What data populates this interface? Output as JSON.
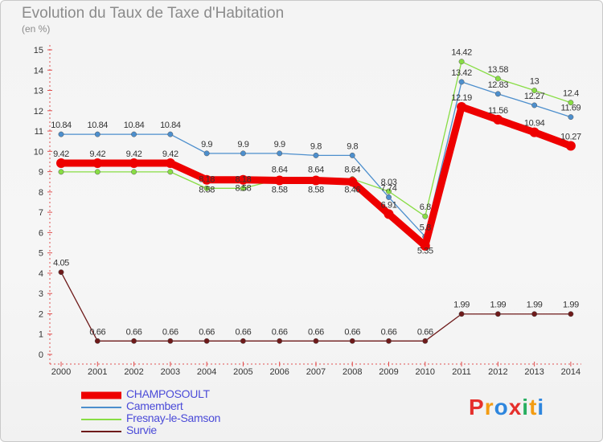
{
  "page": {
    "title": "Evolution du Taux de Taxe d'Habitation",
    "subtitle": "(en %)"
  },
  "chart_data": {
    "type": "line",
    "title": "Evolution du Taux de Taxe d'Habitation",
    "ylabel": "(en %)",
    "x": [
      "2000",
      "2001",
      "2002",
      "2003",
      "2004",
      "2005",
      "2006",
      "2007",
      "2008",
      "2009",
      "2010",
      "2011",
      "2012",
      "2013",
      "2014"
    ],
    "ylim": [
      0,
      15
    ],
    "yticks": [
      "0",
      "1",
      "2",
      "3",
      "4",
      "5",
      "6",
      "7",
      "8",
      "9",
      "10",
      "11",
      "12",
      "13",
      "14",
      "15"
    ],
    "grid": false,
    "legend_position": "bottom-left",
    "series": [
      {
        "name": "CHAMPOSOULT",
        "color": "#ee0000",
        "values": [
          9.42,
          9.42,
          9.42,
          9.42,
          8.6,
          8.6,
          8.57,
          8.57,
          8.5,
          6.91,
          5.35,
          12.19,
          11.56,
          10.94,
          10.27
        ],
        "labels": [
          "9.42",
          "9.42",
          "9.42",
          "9.42",
          "",
          "",
          "",
          "",
          "",
          "6.91",
          "",
          "12.19",
          "11.56",
          "10.94",
          "10.27"
        ]
      },
      {
        "name": "Camembert",
        "color": "#4d8fcd",
        "values": [
          10.84,
          10.84,
          10.84,
          10.84,
          9.9,
          9.9,
          9.9,
          9.8,
          9.8,
          7.74,
          5.8,
          13.42,
          12.83,
          12.27,
          11.69
        ],
        "labels": [
          "10.84",
          "10.84",
          "10.84",
          "10.84",
          "9.9",
          "9.9",
          "9.9",
          "9.8",
          "9.8",
          "7.74",
          "5.8",
          "13.42",
          "12.83",
          "12.27",
          "11.69"
        ]
      },
      {
        "name": "Fresnay-le-Samson",
        "color": "#88dd44",
        "values": [
          8.99,
          8.99,
          8.99,
          8.99,
          8.18,
          8.18,
          8.64,
          8.64,
          8.64,
          8.03,
          6.8,
          14.42,
          13.58,
          13.0,
          12.4
        ],
        "labels": [
          "",
          "",
          "",
          "",
          "8.18",
          "8.18",
          "8.64",
          "8.64",
          "8.64",
          "8.03",
          "6.8",
          "14.42",
          "13.58",
          "13",
          "12.4"
        ]
      },
      {
        "name": "Survie",
        "color": "#6e1a1a",
        "values": [
          4.05,
          0.66,
          0.66,
          0.66,
          0.66,
          0.66,
          0.66,
          0.66,
          0.66,
          0.66,
          0.66,
          1.99,
          1.99,
          1.99,
          1.99
        ],
        "labels": [
          "4.05",
          "0.66",
          "0.66",
          "0.66",
          "0.66",
          "0.66",
          "0.66",
          "0.66",
          "0.66",
          "0.66",
          "0.66",
          "1.99",
          "1.99",
          "1.99",
          "1.99"
        ]
      }
    ],
    "extra_labels": [
      "8.58",
      "8.58",
      "8.58",
      "8.58",
      "8.46",
      "5.35"
    ]
  },
  "logo": {
    "text": "Proxiti",
    "letters": [
      "P",
      "r",
      "o",
      "x",
      "i",
      "t",
      "i"
    ],
    "colors": [
      "#e5302c",
      "#f39c12",
      "#2e86de",
      "#e5302c",
      "#27ae60",
      "#f39c12",
      "#2e86de"
    ]
  }
}
